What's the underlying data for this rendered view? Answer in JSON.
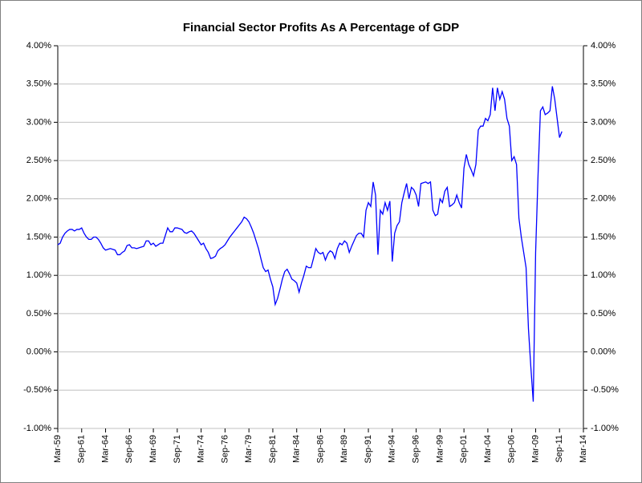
{
  "chart_data": {
    "type": "line",
    "title": "Financial Sector Profits As A Percentage of GDP",
    "color": "#0000ff",
    "grid": true,
    "categories": [
      "Mar-59",
      null,
      null,
      null,
      null,
      null,
      null,
      null,
      null,
      null,
      "Sep-61",
      null,
      null,
      null,
      null,
      null,
      null,
      null,
      null,
      null,
      "Mar-64",
      null,
      null,
      null,
      null,
      null,
      null,
      null,
      null,
      null,
      "Sep-66",
      null,
      null,
      null,
      null,
      null,
      null,
      null,
      null,
      null,
      "Mar-69",
      null,
      null,
      null,
      null,
      null,
      null,
      null,
      null,
      null,
      "Sep-71",
      null,
      null,
      null,
      null,
      null,
      null,
      null,
      null,
      null,
      "Mar-74",
      null,
      null,
      null,
      null,
      null,
      null,
      null,
      null,
      null,
      "Sep-76",
      null,
      null,
      null,
      null,
      null,
      null,
      null,
      null,
      null,
      "Mar-79",
      null,
      null,
      null,
      null,
      null,
      null,
      null,
      null,
      null,
      "Sep-81",
      null,
      null,
      null,
      null,
      null,
      null,
      null,
      null,
      null,
      "Mar-84",
      null,
      null,
      null,
      null,
      null,
      null,
      null,
      null,
      null,
      "Sep-86",
      null,
      null,
      null,
      null,
      null,
      null,
      null,
      null,
      null,
      "Mar-89",
      null,
      null,
      null,
      null,
      null,
      null,
      null,
      null,
      null,
      "Sep-91",
      null,
      null,
      null,
      null,
      null,
      null,
      null,
      null,
      null,
      "Mar-94",
      null,
      null,
      null,
      null,
      null,
      null,
      null,
      null,
      null,
      "Sep-96",
      null,
      null,
      null,
      null,
      null,
      null,
      null,
      null,
      null,
      "Mar-99",
      null,
      null,
      null,
      null,
      null,
      null,
      null,
      null,
      null,
      "Sep-01",
      null,
      null,
      null,
      null,
      null,
      null,
      null,
      null,
      null,
      "Mar-04",
      null,
      null,
      null,
      null,
      null,
      null,
      null,
      null,
      null,
      "Sep-06",
      null,
      null,
      null,
      null,
      null,
      null,
      null,
      null,
      null,
      "Mar-09",
      null,
      null,
      null,
      null,
      null,
      null,
      null,
      null,
      null,
      "Sep-11",
      null,
      null,
      null,
      null,
      null,
      null,
      null,
      null,
      null,
      "Mar-14"
    ],
    "values": [
      1.4,
      1.42,
      1.5,
      1.55,
      1.58,
      1.6,
      1.6,
      1.58,
      1.6,
      1.6,
      1.62,
      1.55,
      1.5,
      1.47,
      1.47,
      1.5,
      1.5,
      1.47,
      1.42,
      1.36,
      1.33,
      1.34,
      1.35,
      1.34,
      1.33,
      1.27,
      1.27,
      1.3,
      1.32,
      1.39,
      1.4,
      1.36,
      1.36,
      1.35,
      1.36,
      1.37,
      1.38,
      1.45,
      1.45,
      1.4,
      1.42,
      1.38,
      1.4,
      1.42,
      1.42,
      1.52,
      1.62,
      1.57,
      1.57,
      1.62,
      1.62,
      1.61,
      1.6,
      1.56,
      1.55,
      1.57,
      1.58,
      1.55,
      1.5,
      1.45,
      1.4,
      1.42,
      1.35,
      1.3,
      1.22,
      1.23,
      1.25,
      1.32,
      1.35,
      1.37,
      1.4,
      1.45,
      1.5,
      1.54,
      1.58,
      1.62,
      1.66,
      1.7,
      1.76,
      1.74,
      1.7,
      1.63,
      1.55,
      1.45,
      1.35,
      1.22,
      1.1,
      1.05,
      1.07,
      0.95,
      0.85,
      0.62,
      0.7,
      0.82,
      0.95,
      1.05,
      1.08,
      1.02,
      0.95,
      0.93,
      0.9,
      0.78,
      0.9,
      1.0,
      1.12,
      1.1,
      1.1,
      1.22,
      1.35,
      1.3,
      1.28,
      1.3,
      1.2,
      1.28,
      1.32,
      1.3,
      1.22,
      1.35,
      1.42,
      1.4,
      1.45,
      1.42,
      1.3,
      1.38,
      1.45,
      1.52,
      1.55,
      1.55,
      1.5,
      1.85,
      1.95,
      1.9,
      2.22,
      2.05,
      1.27,
      1.85,
      1.8,
      1.95,
      1.85,
      1.97,
      1.18,
      1.55,
      1.65,
      1.7,
      1.95,
      2.08,
      2.2,
      2.0,
      2.15,
      2.12,
      2.05,
      1.9,
      2.2,
      2.21,
      2.22,
      2.2,
      2.22,
      1.85,
      1.78,
      1.8,
      2.0,
      1.95,
      2.1,
      2.15,
      1.9,
      1.92,
      1.95,
      2.05,
      1.95,
      1.88,
      2.4,
      2.58,
      2.45,
      2.38,
      2.3,
      2.45,
      2.9,
      2.95,
      2.95,
      3.05,
      3.02,
      3.1,
      3.45,
      3.15,
      3.45,
      3.3,
      3.4,
      3.3,
      3.05,
      2.95,
      2.5,
      2.55,
      2.45,
      1.75,
      1.5,
      1.3,
      1.1,
      0.3,
      -0.2,
      -0.65,
      1.3,
      2.3,
      3.15,
      3.2,
      3.1,
      3.12,
      3.15,
      3.47,
      3.3,
      3.05,
      2.8,
      2.88,
      null,
      null,
      null,
      null,
      null,
      null,
      null,
      null,
      null
    ],
    "ylim": [
      -1,
      4
    ],
    "yticks": [
      {
        "value": -1,
        "label": "-1.00%"
      },
      {
        "value": -0.5,
        "label": "-0.50%"
      },
      {
        "value": 0,
        "label": "0.00%"
      },
      {
        "value": 0.5,
        "label": "0.50%"
      },
      {
        "value": 1,
        "label": "1.00%"
      },
      {
        "value": 1.5,
        "label": "1.50%"
      },
      {
        "value": 2,
        "label": "2.00%"
      },
      {
        "value": 2.5,
        "label": "2.50%"
      },
      {
        "value": 3,
        "label": "3.00%"
      },
      {
        "value": 3.5,
        "label": "3.50%"
      },
      {
        "value": 4,
        "label": "4.00%"
      }
    ],
    "y2lim": [
      -1,
      4
    ],
    "y2ticks": [
      {
        "value": -1,
        "label": "-1.00%"
      },
      {
        "value": -0.5,
        "label": "-0.50%"
      },
      {
        "value": 0,
        "label": "0.00%"
      },
      {
        "value": 0.5,
        "label": "0.50%"
      },
      {
        "value": 1,
        "label": "1.00%"
      },
      {
        "value": 1.5,
        "label": "1.50%"
      },
      {
        "value": 2,
        "label": "2.00%"
      },
      {
        "value": 2.5,
        "label": "2.50%"
      },
      {
        "value": 3,
        "label": "3.00%"
      },
      {
        "value": 3.5,
        "label": "3.50%"
      },
      {
        "value": 4,
        "label": "4.00%"
      }
    ]
  }
}
